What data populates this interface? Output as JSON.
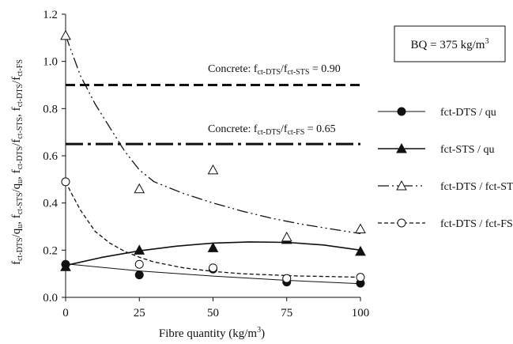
{
  "chart_data": {
    "type": "scatter",
    "xlabel": "Fibre quantity (kg/m³)",
    "ylabel": "f_ct-DTS/q_u, f_ct-STS/q_u, f_ct-DTS/f_ct-STS, f_ct-DTS/f_ct-FS",
    "xlim": [
      0,
      100
    ],
    "ylim": [
      0,
      1.2
    ],
    "x_ticks": [
      "0",
      "25",
      "50",
      "75",
      "100"
    ],
    "y_ticks": [
      "0.0",
      "0.2",
      "0.4",
      "0.6",
      "0.8",
      "1.0",
      "1.2"
    ],
    "info_box": "BQ = 375 kg/m³",
    "reference_lines": [
      {
        "label": "Concrete: f_ct-DTS/f_ct-STS = 0.90",
        "y": 0.9,
        "style": "dashed"
      },
      {
        "label": "Concrete: f_ct-DTS/f_ct-FS = 0.65",
        "y": 0.65,
        "style": "dash-dot"
      }
    ],
    "series": [
      {
        "name": "fct-DTS / qu",
        "marker": "filled-circle",
        "line": "solid-thin",
        "x": [
          0,
          25,
          50,
          75,
          100
        ],
        "values": [
          0.14,
          0.095,
          0.12,
          0.065,
          0.06
        ]
      },
      {
        "name": "fct-STS / qu",
        "marker": "filled-triangle",
        "line": "solid",
        "x": [
          0,
          25,
          50,
          75,
          100
        ],
        "values": [
          0.13,
          0.2,
          0.21,
          0.245,
          0.195
        ]
      },
      {
        "name": "fct-DTS / fct-STS",
        "marker": "open-triangle",
        "line": "dash-dot-dot",
        "x": [
          0,
          25,
          50,
          75,
          100
        ],
        "values": [
          1.11,
          0.46,
          0.54,
          0.255,
          0.29
        ]
      },
      {
        "name": "fct-DTS / fct-FS",
        "marker": "open-circle",
        "line": "short-dashed",
        "x": [
          0,
          25,
          50,
          75,
          100
        ],
        "values": [
          0.49,
          0.14,
          0.125,
          0.08,
          0.085
        ]
      }
    ],
    "trendlines": [
      {
        "series": "fct-DTS / qu",
        "x": [
          0,
          25,
          50,
          75,
          100
        ],
        "y": [
          0.142,
          0.112,
          0.09,
          0.072,
          0.058
        ]
      },
      {
        "series": "fct-STS / qu",
        "x": [
          0,
          12.5,
          25,
          37.5,
          50,
          62.5,
          75,
          87.5,
          100
        ],
        "y": [
          0.135,
          0.17,
          0.197,
          0.217,
          0.23,
          0.235,
          0.233,
          0.222,
          0.2
        ]
      },
      {
        "series": "fct-DTS / fct-STS",
        "x": [
          0,
          5,
          10,
          15,
          20,
          25,
          30,
          40,
          50,
          60,
          70,
          80,
          90,
          100
        ],
        "y": [
          1.11,
          0.94,
          0.82,
          0.72,
          0.62,
          0.54,
          0.49,
          0.44,
          0.4,
          0.365,
          0.335,
          0.31,
          0.29,
          0.27
        ]
      },
      {
        "series": "fct-DTS / fct-FS",
        "x": [
          0,
          2,
          5,
          10,
          15,
          20,
          25,
          30,
          40,
          50,
          60,
          70,
          80,
          90,
          100
        ],
        "y": [
          0.49,
          0.44,
          0.37,
          0.28,
          0.23,
          0.195,
          0.17,
          0.15,
          0.125,
          0.11,
          0.1,
          0.095,
          0.09,
          0.088,
          0.085
        ]
      }
    ]
  }
}
